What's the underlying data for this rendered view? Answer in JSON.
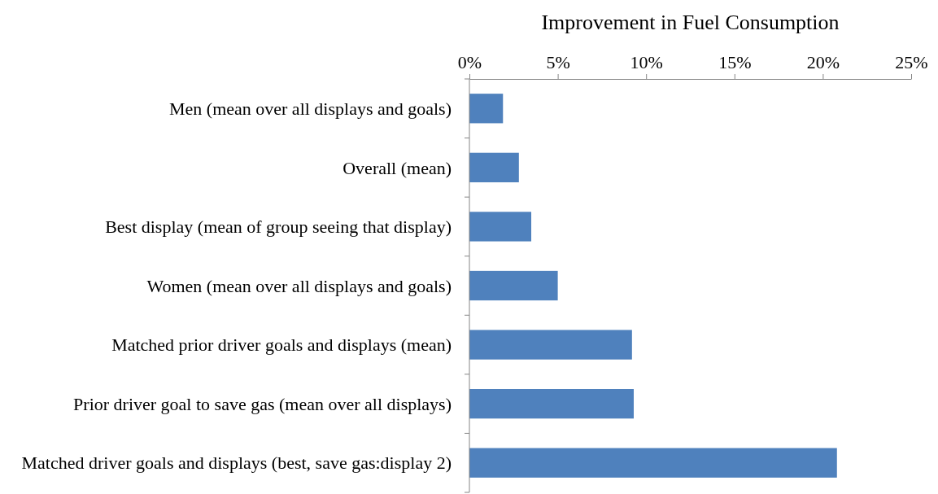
{
  "chart_data": {
    "type": "bar",
    "orientation": "horizontal",
    "xlabel": "Improvement in Fuel Consumption",
    "categories": [
      "Men (mean over all displays and goals)",
      "Overall (mean)",
      "Best display (mean of group seeing that display)",
      "Women (mean over all displays and goals)",
      "Matched prior driver goals and displays (mean)",
      "Prior driver goal to save gas (mean over all displays)",
      "Matched driver goals and displays (best, save gas:display 2)"
    ],
    "values": [
      1.9,
      2.8,
      3.5,
      5.0,
      9.2,
      9.3,
      20.8
    ],
    "color": "#4f81bd",
    "xlim": [
      0,
      25
    ],
    "xticks": [
      {
        "value": 0,
        "label": "0%"
      },
      {
        "value": 5,
        "label": "5%"
      },
      {
        "value": 10,
        "label": "10%"
      },
      {
        "value": 15,
        "label": "15%"
      },
      {
        "value": 20,
        "label": "20%"
      },
      {
        "value": 25,
        "label": "25%"
      }
    ],
    "grid": false
  }
}
